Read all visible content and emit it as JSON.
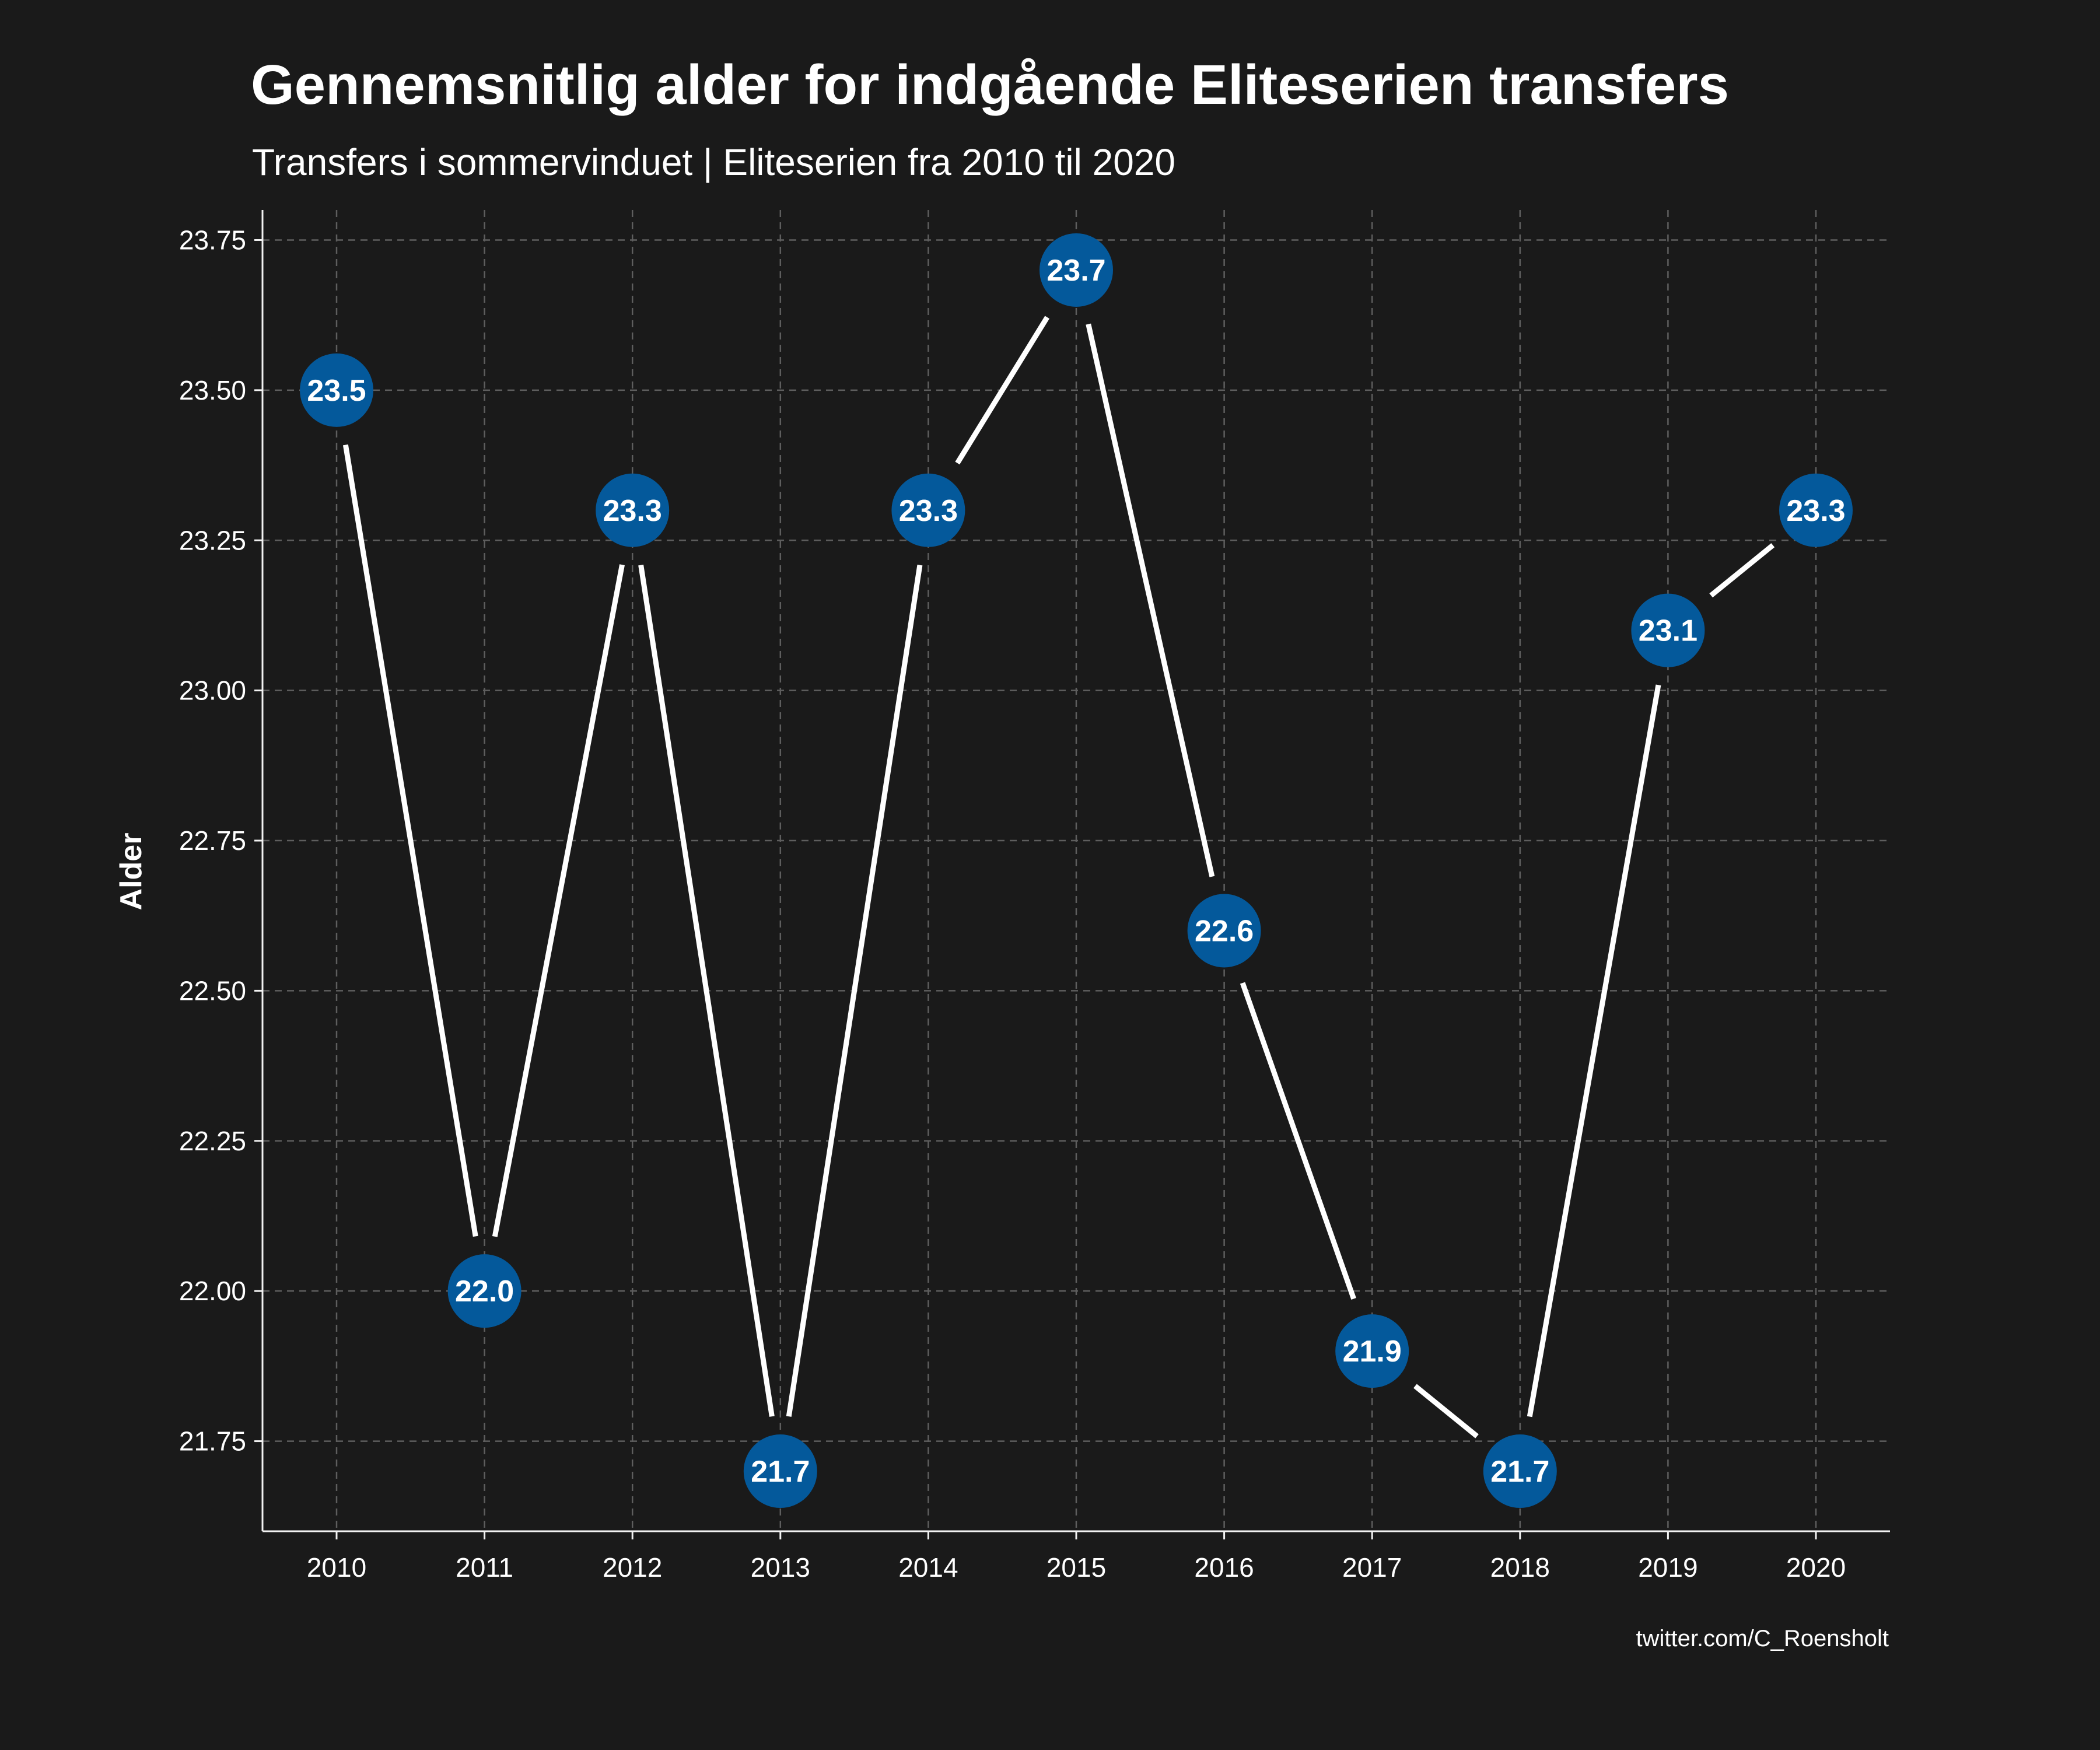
{
  "chart_data": {
    "type": "line",
    "title": "Gennemsnitlig alder for indgående Eliteserien transfers",
    "subtitle": "Transfers i sommervinduet | Eliteserien fra 2010 til 2020",
    "xlabel": "",
    "ylabel": "Alder",
    "caption": "twitter.com/C_Roensholt",
    "x": [
      "2010",
      "2011",
      "2012",
      "2013",
      "2014",
      "2015",
      "2016",
      "2017",
      "2018",
      "2019",
      "2020"
    ],
    "y": [
      23.5,
      22.0,
      23.3,
      21.7,
      23.3,
      23.7,
      22.6,
      21.9,
      21.7,
      23.1,
      23.3
    ],
    "point_labels": [
      "23.5",
      "22.0",
      "23.3",
      "21.7",
      "23.3",
      "23.7",
      "22.6",
      "21.9",
      "21.7",
      "23.1",
      "23.3"
    ],
    "y_ticks": [
      "21.75",
      "22.00",
      "22.25",
      "22.50",
      "22.75",
      "23.00",
      "23.25",
      "23.50",
      "23.75"
    ],
    "ylim": [
      21.6,
      23.8
    ],
    "grid": true,
    "legend": "none",
    "colors": {
      "background": "#1a1a1a",
      "line": "#ffffff",
      "point": "#04599b",
      "text": "#ffffff",
      "grid": "#5e5e5e"
    }
  }
}
